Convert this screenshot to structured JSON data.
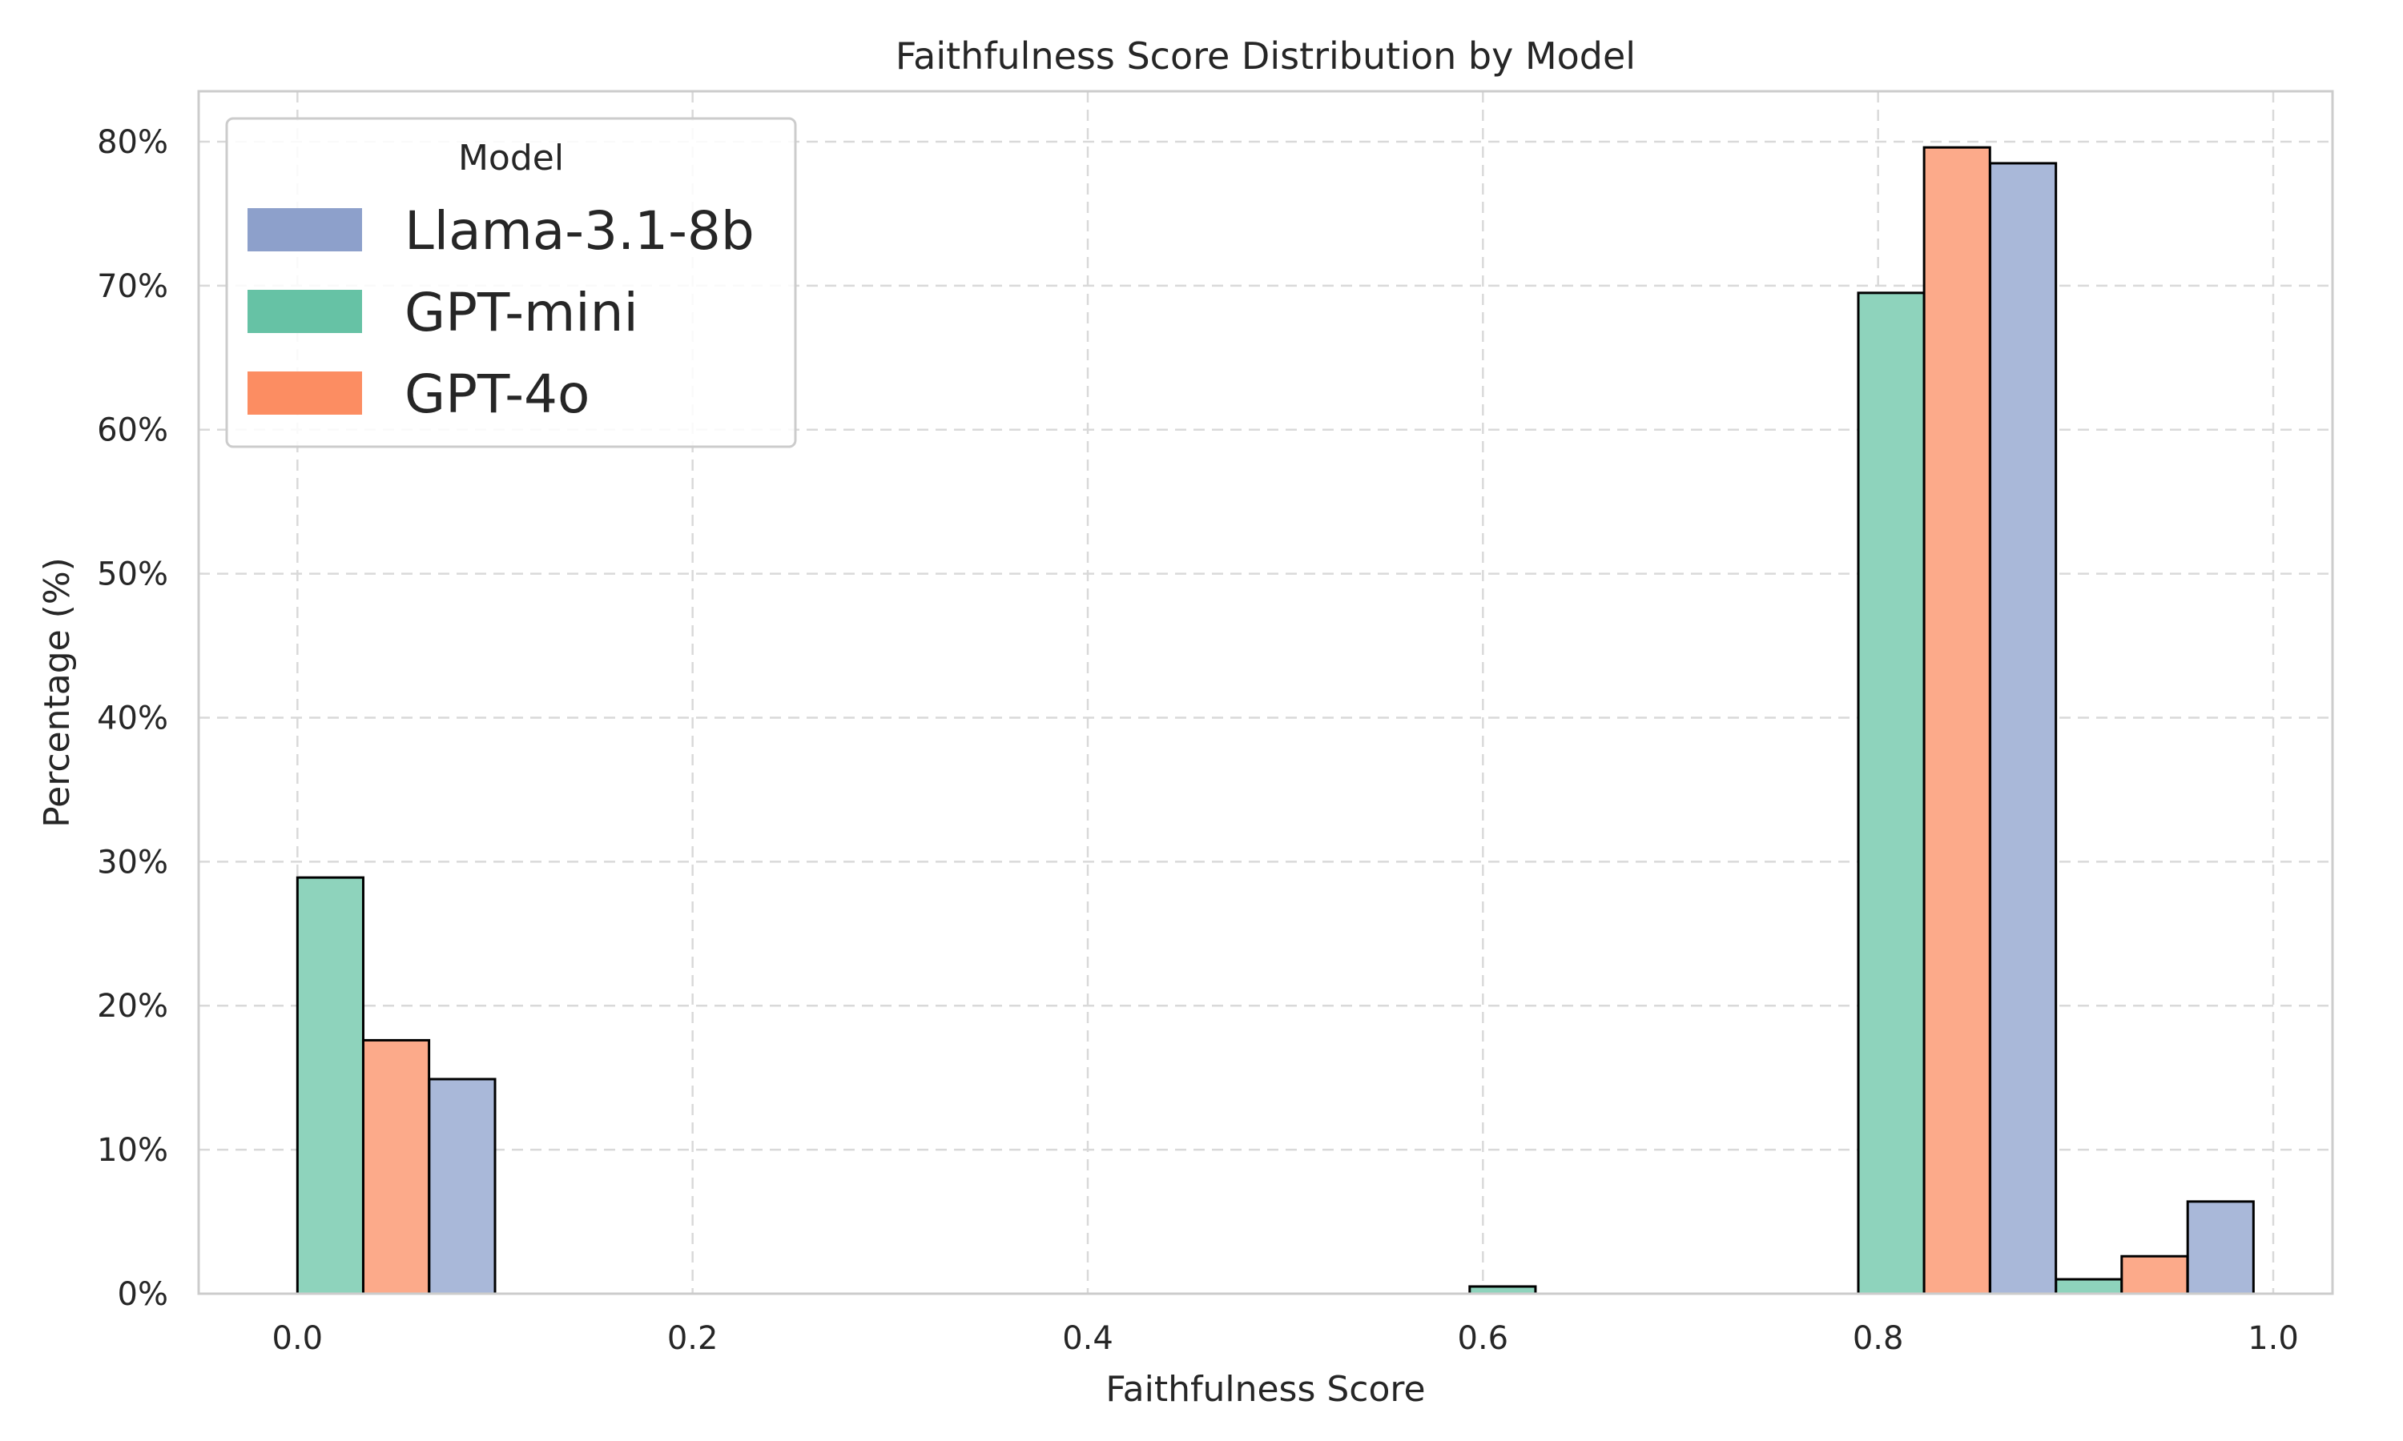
{
  "chart_data": {
    "type": "bar",
    "title": "Faithfulness Score Distribution by Model",
    "xlabel": "Faithfulness Score",
    "ylabel": "Percentage (%)",
    "xlim": [
      -0.05,
      1.03
    ],
    "ylim": [
      0,
      83.5
    ],
    "xticks": [
      0.0,
      0.2,
      0.4,
      0.6,
      0.8,
      1.0
    ],
    "xtick_labels": [
      "0.0",
      "0.2",
      "0.4",
      "0.6",
      "0.8",
      "1.0"
    ],
    "yticks": [
      0,
      10,
      20,
      30,
      40,
      50,
      60,
      70,
      80
    ],
    "ytick_labels": [
      "0%",
      "10%",
      "20%",
      "30%",
      "40%",
      "50%",
      "60%",
      "70%",
      "80%"
    ],
    "grid": true,
    "legend": {
      "title": "Model",
      "placement": "top-left",
      "entries": [
        {
          "label": "Llama-3.1-8b",
          "color": "#8da0cb"
        },
        {
          "label": "GPT-mini",
          "color": "#66c2a5"
        },
        {
          "label": "GPT-4o",
          "color": "#fc8d62"
        }
      ]
    },
    "bar_width": 0.0333,
    "series": [
      {
        "name": "GPT-mini",
        "color": "#8ed3bc",
        "bars": [
          {
            "x_start": 0.0,
            "value": 28.9
          },
          {
            "x_start": 0.5933,
            "value": 0.5
          },
          {
            "x_start": 0.79,
            "value": 69.5
          },
          {
            "x_start": 0.89,
            "value": 1.0
          }
        ]
      },
      {
        "name": "GPT-4o",
        "color": "#fcaa8a",
        "bars": [
          {
            "x_start": 0.0333,
            "value": 17.6
          },
          {
            "x_start": 0.8233,
            "value": 79.6
          },
          {
            "x_start": 0.9233,
            "value": 2.6
          }
        ]
      },
      {
        "name": "Llama-3.1-8b",
        "color": "#a9b8d9",
        "bars": [
          {
            "x_start": 0.0667,
            "value": 14.9
          },
          {
            "x_start": 0.8567,
            "value": 78.5
          },
          {
            "x_start": 0.9567,
            "value": 6.4
          }
        ]
      }
    ]
  }
}
